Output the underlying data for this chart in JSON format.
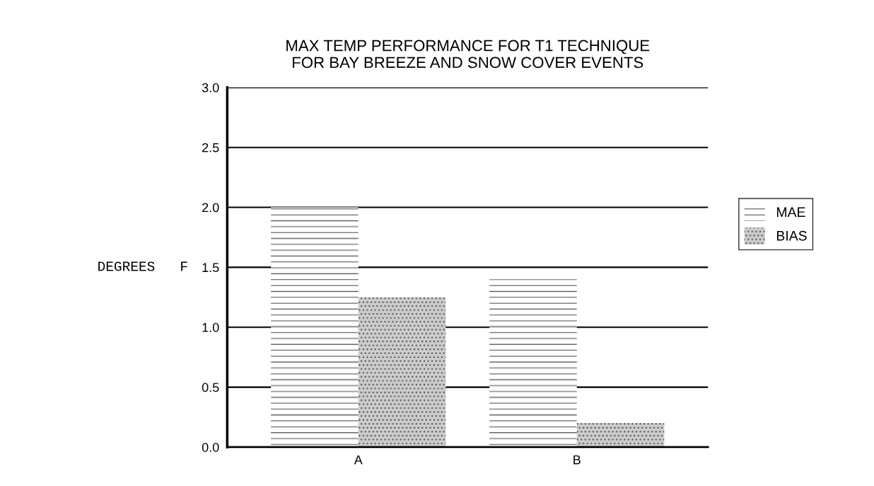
{
  "chart_data": {
    "type": "bar",
    "title": "MAX TEMP PERFORMANCE FOR T1 TECHNIQUE\nFOR BAY BREEZE AND SNOW COVER EVENTS",
    "ylabel": "DEGREES   F",
    "categories": [
      "A",
      "B"
    ],
    "series": [
      {
        "name": "MAE",
        "color": "#ffffff",
        "values": [
          2.0,
          1.4
        ]
      },
      {
        "name": "BIAS",
        "color": "#cccccc",
        "values": [
          1.25,
          0.2
        ]
      }
    ],
    "ylim": [
      0,
      3.0
    ],
    "yticks": [
      {
        "value": 0,
        "label": "0.0"
      },
      {
        "value": 0.5,
        "label": "0.5"
      },
      {
        "value": 1.0,
        "label": "1.0"
      },
      {
        "value": 1.5,
        "label": "1.5"
      },
      {
        "value": 2.0,
        "label": "2.0"
      },
      {
        "value": 2.5,
        "label": "2.5"
      },
      {
        "value": 3.0,
        "label": "3.0"
      }
    ],
    "grid": "y",
    "legend": "right"
  }
}
